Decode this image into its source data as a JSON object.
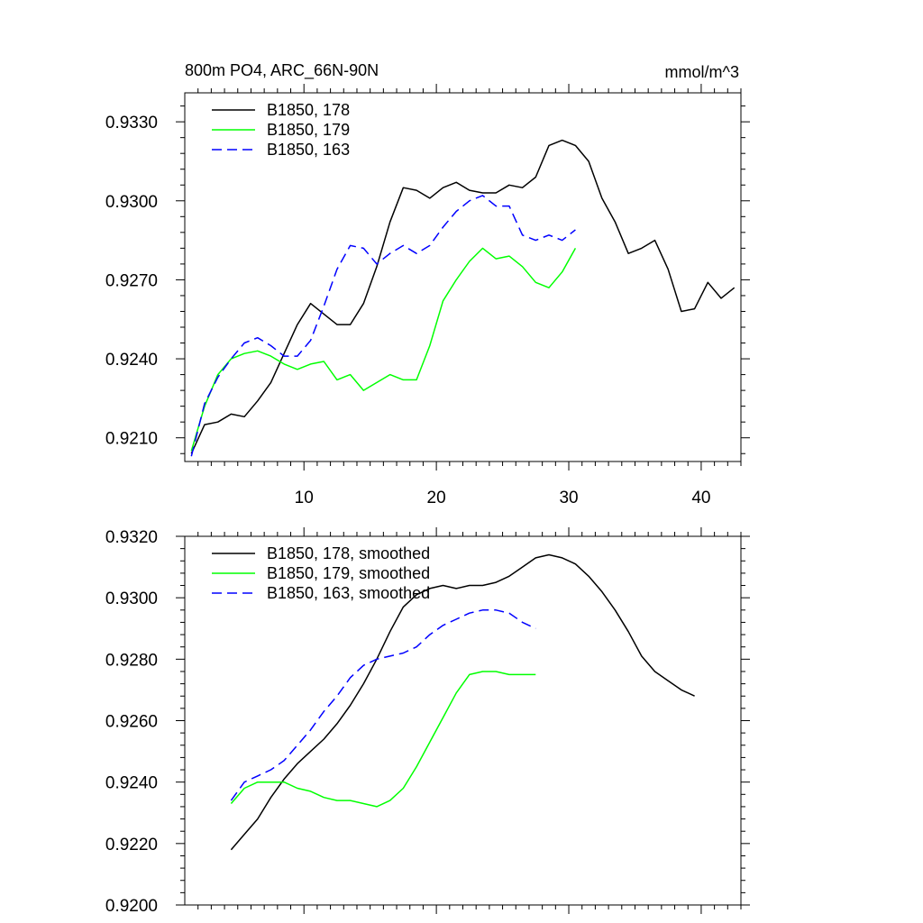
{
  "chart_data": [
    {
      "type": "line",
      "title_left": "800m PO4, ARC_66N-90N",
      "title_right": "mmol/m^3",
      "xlabel": "",
      "ylabel": "",
      "xlim": [
        1,
        43
      ],
      "ylim": [
        0.9201,
        0.9341
      ],
      "xticks": [
        10,
        20,
        30,
        40
      ],
      "xtick_labels": [
        "10",
        "20",
        "30",
        "40"
      ],
      "yticks": [
        0.921,
        0.924,
        0.927,
        0.93,
        0.933
      ],
      "ytick_labels": [
        "0.9210",
        "0.9240",
        "0.9270",
        "0.9300",
        "0.9330"
      ],
      "legend_position": "top-left",
      "series": [
        {
          "name": "B1850, 178",
          "color": "#000000",
          "dash": "solid",
          "x": [
            1.5,
            2.5,
            3.5,
            4.5,
            5.5,
            6.5,
            7.5,
            8.5,
            9.5,
            10.5,
            11.5,
            12.5,
            13.5,
            14.5,
            15.5,
            16.5,
            17.5,
            18.5,
            19.5,
            20.5,
            21.5,
            22.5,
            23.5,
            24.5,
            25.5,
            26.5,
            27.5,
            28.5,
            29.5,
            30.5,
            31.5,
            32.5,
            33.5,
            34.5,
            35.5,
            36.5,
            37.5,
            38.5,
            39.5,
            40.5,
            41.5,
            42.5
          ],
          "y": [
            0.9204,
            0.9215,
            0.9216,
            0.9219,
            0.9218,
            0.9224,
            0.9231,
            0.9242,
            0.9253,
            0.9261,
            0.9257,
            0.9253,
            0.9253,
            0.9261,
            0.9275,
            0.9292,
            0.9305,
            0.9304,
            0.9301,
            0.9305,
            0.9307,
            0.9304,
            0.9303,
            0.9303,
            0.9306,
            0.9305,
            0.9309,
            0.9321,
            0.9323,
            0.9321,
            0.9315,
            0.9301,
            0.9292,
            0.928,
            0.9282,
            0.9285,
            0.9274,
            0.9258,
            0.9259,
            0.9269,
            0.9263,
            0.9267
          ]
        },
        {
          "name": "B1850, 179",
          "color": "#00ff00",
          "dash": "solid",
          "x": [
            1.5,
            2.5,
            3.5,
            4.5,
            5.5,
            6.5,
            7.5,
            8.5,
            9.5,
            10.5,
            11.5,
            12.5,
            13.5,
            14.5,
            15.5,
            16.5,
            17.5,
            18.5,
            19.5,
            20.5,
            21.5,
            22.5,
            23.5,
            24.5,
            25.5,
            26.5,
            27.5,
            28.5,
            29.5,
            30.5
          ],
          "y": [
            0.9205,
            0.9222,
            0.9234,
            0.924,
            0.9242,
            0.9243,
            0.9241,
            0.9238,
            0.9236,
            0.9238,
            0.9239,
            0.9232,
            0.9234,
            0.9228,
            0.9231,
            0.9234,
            0.9232,
            0.9232,
            0.9245,
            0.9262,
            0.927,
            0.9277,
            0.9282,
            0.9278,
            0.9279,
            0.9275,
            0.9269,
            0.9267,
            0.9273,
            0.9282
          ]
        },
        {
          "name": "B1850, 163",
          "color": "#0000ff",
          "dash": "dashed",
          "x": [
            1.5,
            2.5,
            3.5,
            4.5,
            5.5,
            6.5,
            7.5,
            8.5,
            9.5,
            10.5,
            11.5,
            12.5,
            13.5,
            14.5,
            15.5,
            16.5,
            17.5,
            18.5,
            19.5,
            20.5,
            21.5,
            22.5,
            23.5,
            24.5,
            25.5,
            26.5,
            27.5,
            28.5,
            29.5,
            30.5
          ],
          "y": [
            0.9203,
            0.9223,
            0.9233,
            0.924,
            0.9246,
            0.9248,
            0.9245,
            0.9241,
            0.9241,
            0.9247,
            0.926,
            0.9274,
            0.9283,
            0.9282,
            0.9276,
            0.928,
            0.9283,
            0.928,
            0.9283,
            0.929,
            0.9296,
            0.93,
            0.9302,
            0.9298,
            0.9298,
            0.9287,
            0.9285,
            0.9287,
            0.9285,
            0.9289
          ]
        }
      ]
    },
    {
      "type": "line",
      "title": "",
      "xlabel": "",
      "ylabel": "",
      "xlim": [
        1,
        43
      ],
      "ylim": [
        0.92,
        0.932
      ],
      "xticks": [
        10,
        20,
        30,
        40
      ],
      "xtick_labels": [],
      "yticks": [
        0.92,
        0.922,
        0.924,
        0.926,
        0.928,
        0.93,
        0.932
      ],
      "ytick_labels": [
        "0.9200",
        "0.9220",
        "0.9240",
        "0.9260",
        "0.9280",
        "0.9300",
        "0.9320"
      ],
      "legend_position": "top-left",
      "series": [
        {
          "name": "B1850, 178, smoothed",
          "color": "#000000",
          "dash": "solid",
          "x": [
            4.5,
            5.5,
            6.5,
            7.5,
            8.5,
            9.5,
            10.5,
            11.5,
            12.5,
            13.5,
            14.5,
            15.5,
            16.5,
            17.5,
            18.5,
            19.5,
            20.5,
            21.5,
            22.5,
            23.5,
            24.5,
            25.5,
            26.5,
            27.5,
            28.5,
            29.5,
            30.5,
            31.5,
            32.5,
            33.5,
            34.5,
            35.5,
            36.5,
            37.5,
            38.5,
            39.5
          ],
          "y": [
            0.9218,
            0.9223,
            0.9228,
            0.9235,
            0.9241,
            0.9246,
            0.925,
            0.9254,
            0.9259,
            0.9265,
            0.9272,
            0.928,
            0.9289,
            0.9297,
            0.9301,
            0.9303,
            0.9304,
            0.9303,
            0.9304,
            0.9304,
            0.9305,
            0.9307,
            0.931,
            0.9313,
            0.9314,
            0.9313,
            0.9311,
            0.9307,
            0.9302,
            0.9296,
            0.9289,
            0.9281,
            0.9276,
            0.9273,
            0.927,
            0.9268
          ]
        },
        {
          "name": "B1850, 179, smoothed",
          "color": "#00ff00",
          "dash": "solid",
          "x": [
            4.5,
            5.5,
            6.5,
            7.5,
            8.5,
            9.5,
            10.5,
            11.5,
            12.5,
            13.5,
            14.5,
            15.5,
            16.5,
            17.5,
            18.5,
            19.5,
            20.5,
            21.5,
            22.5,
            23.5,
            24.5,
            25.5,
            26.5,
            27.5
          ],
          "y": [
            0.9233,
            0.9238,
            0.924,
            0.924,
            0.924,
            0.9238,
            0.9237,
            0.9235,
            0.9234,
            0.9234,
            0.9233,
            0.9232,
            0.9234,
            0.9238,
            0.9245,
            0.9253,
            0.9261,
            0.9269,
            0.9275,
            0.9276,
            0.9276,
            0.9275,
            0.9275,
            0.9275
          ]
        },
        {
          "name": "B1850, 163, smoothed",
          "color": "#0000ff",
          "dash": "dashed",
          "x": [
            4.5,
            5.5,
            6.5,
            7.5,
            8.5,
            9.5,
            10.5,
            11.5,
            12.5,
            13.5,
            14.5,
            15.5,
            16.5,
            17.5,
            18.5,
            19.5,
            20.5,
            21.5,
            22.5,
            23.5,
            24.5,
            25.5,
            26.5,
            27.5
          ],
          "y": [
            0.9234,
            0.924,
            0.9242,
            0.9244,
            0.9247,
            0.9252,
            0.9257,
            0.9263,
            0.9268,
            0.9274,
            0.9278,
            0.928,
            0.9281,
            0.9282,
            0.9284,
            0.9288,
            0.9291,
            0.9293,
            0.9295,
            0.9296,
            0.9296,
            0.9295,
            0.9292,
            0.929
          ]
        }
      ]
    }
  ]
}
